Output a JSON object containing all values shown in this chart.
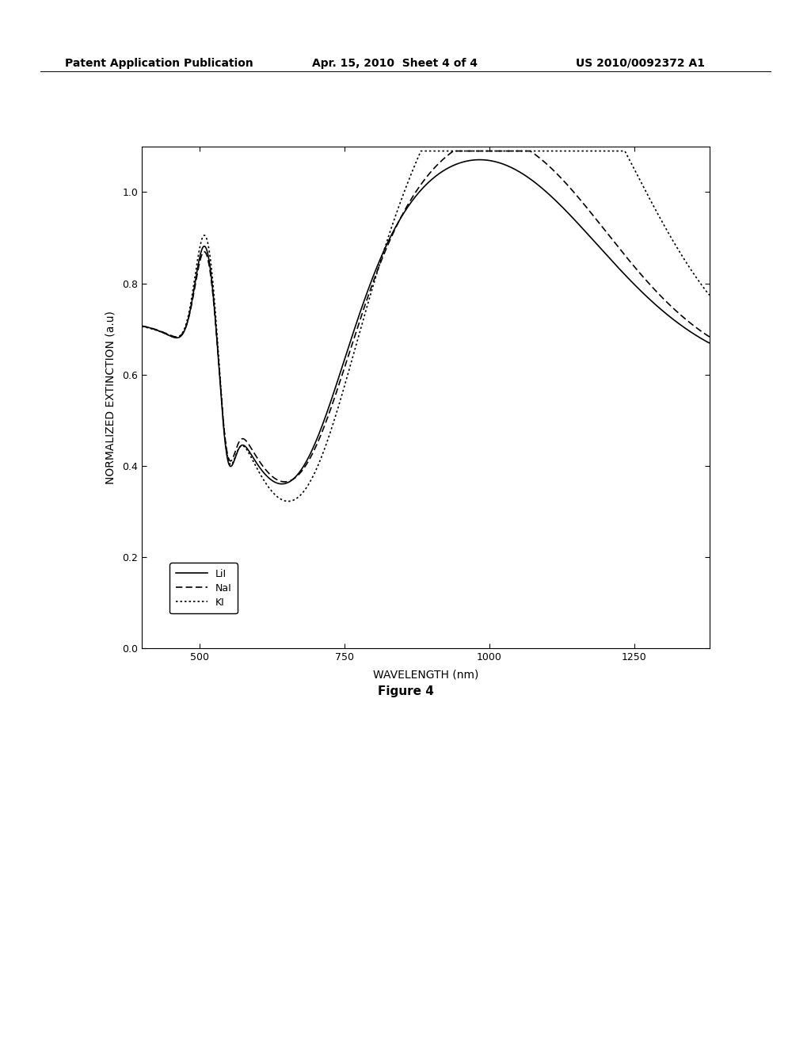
{
  "header_left": "Patent Application Publication",
  "header_center": "Apr. 15, 2010  Sheet 4 of 4",
  "header_right": "US 2010/0092372 A1",
  "figure_label": "Figure 4",
  "xlabel": "WAVELENGTH (nm)",
  "ylabel": "NORMALIZED EXTINCTION (a.u)",
  "xlim": [
    400,
    1380
  ],
  "ylim": [
    0.0,
    1.1
  ],
  "yticks": [
    0.0,
    0.2,
    0.4,
    0.6,
    0.8,
    1.0
  ],
  "xticks": [
    500,
    750,
    1000,
    1250
  ],
  "legend_entries": [
    "LiI",
    "NaI",
    "KI"
  ],
  "background_color": "#ffffff",
  "line_color": "#000000",
  "header_fontsize": 10,
  "axis_label_fontsize": 10,
  "tick_fontsize": 9,
  "legend_fontsize": 9,
  "figure_label_fontsize": 11
}
